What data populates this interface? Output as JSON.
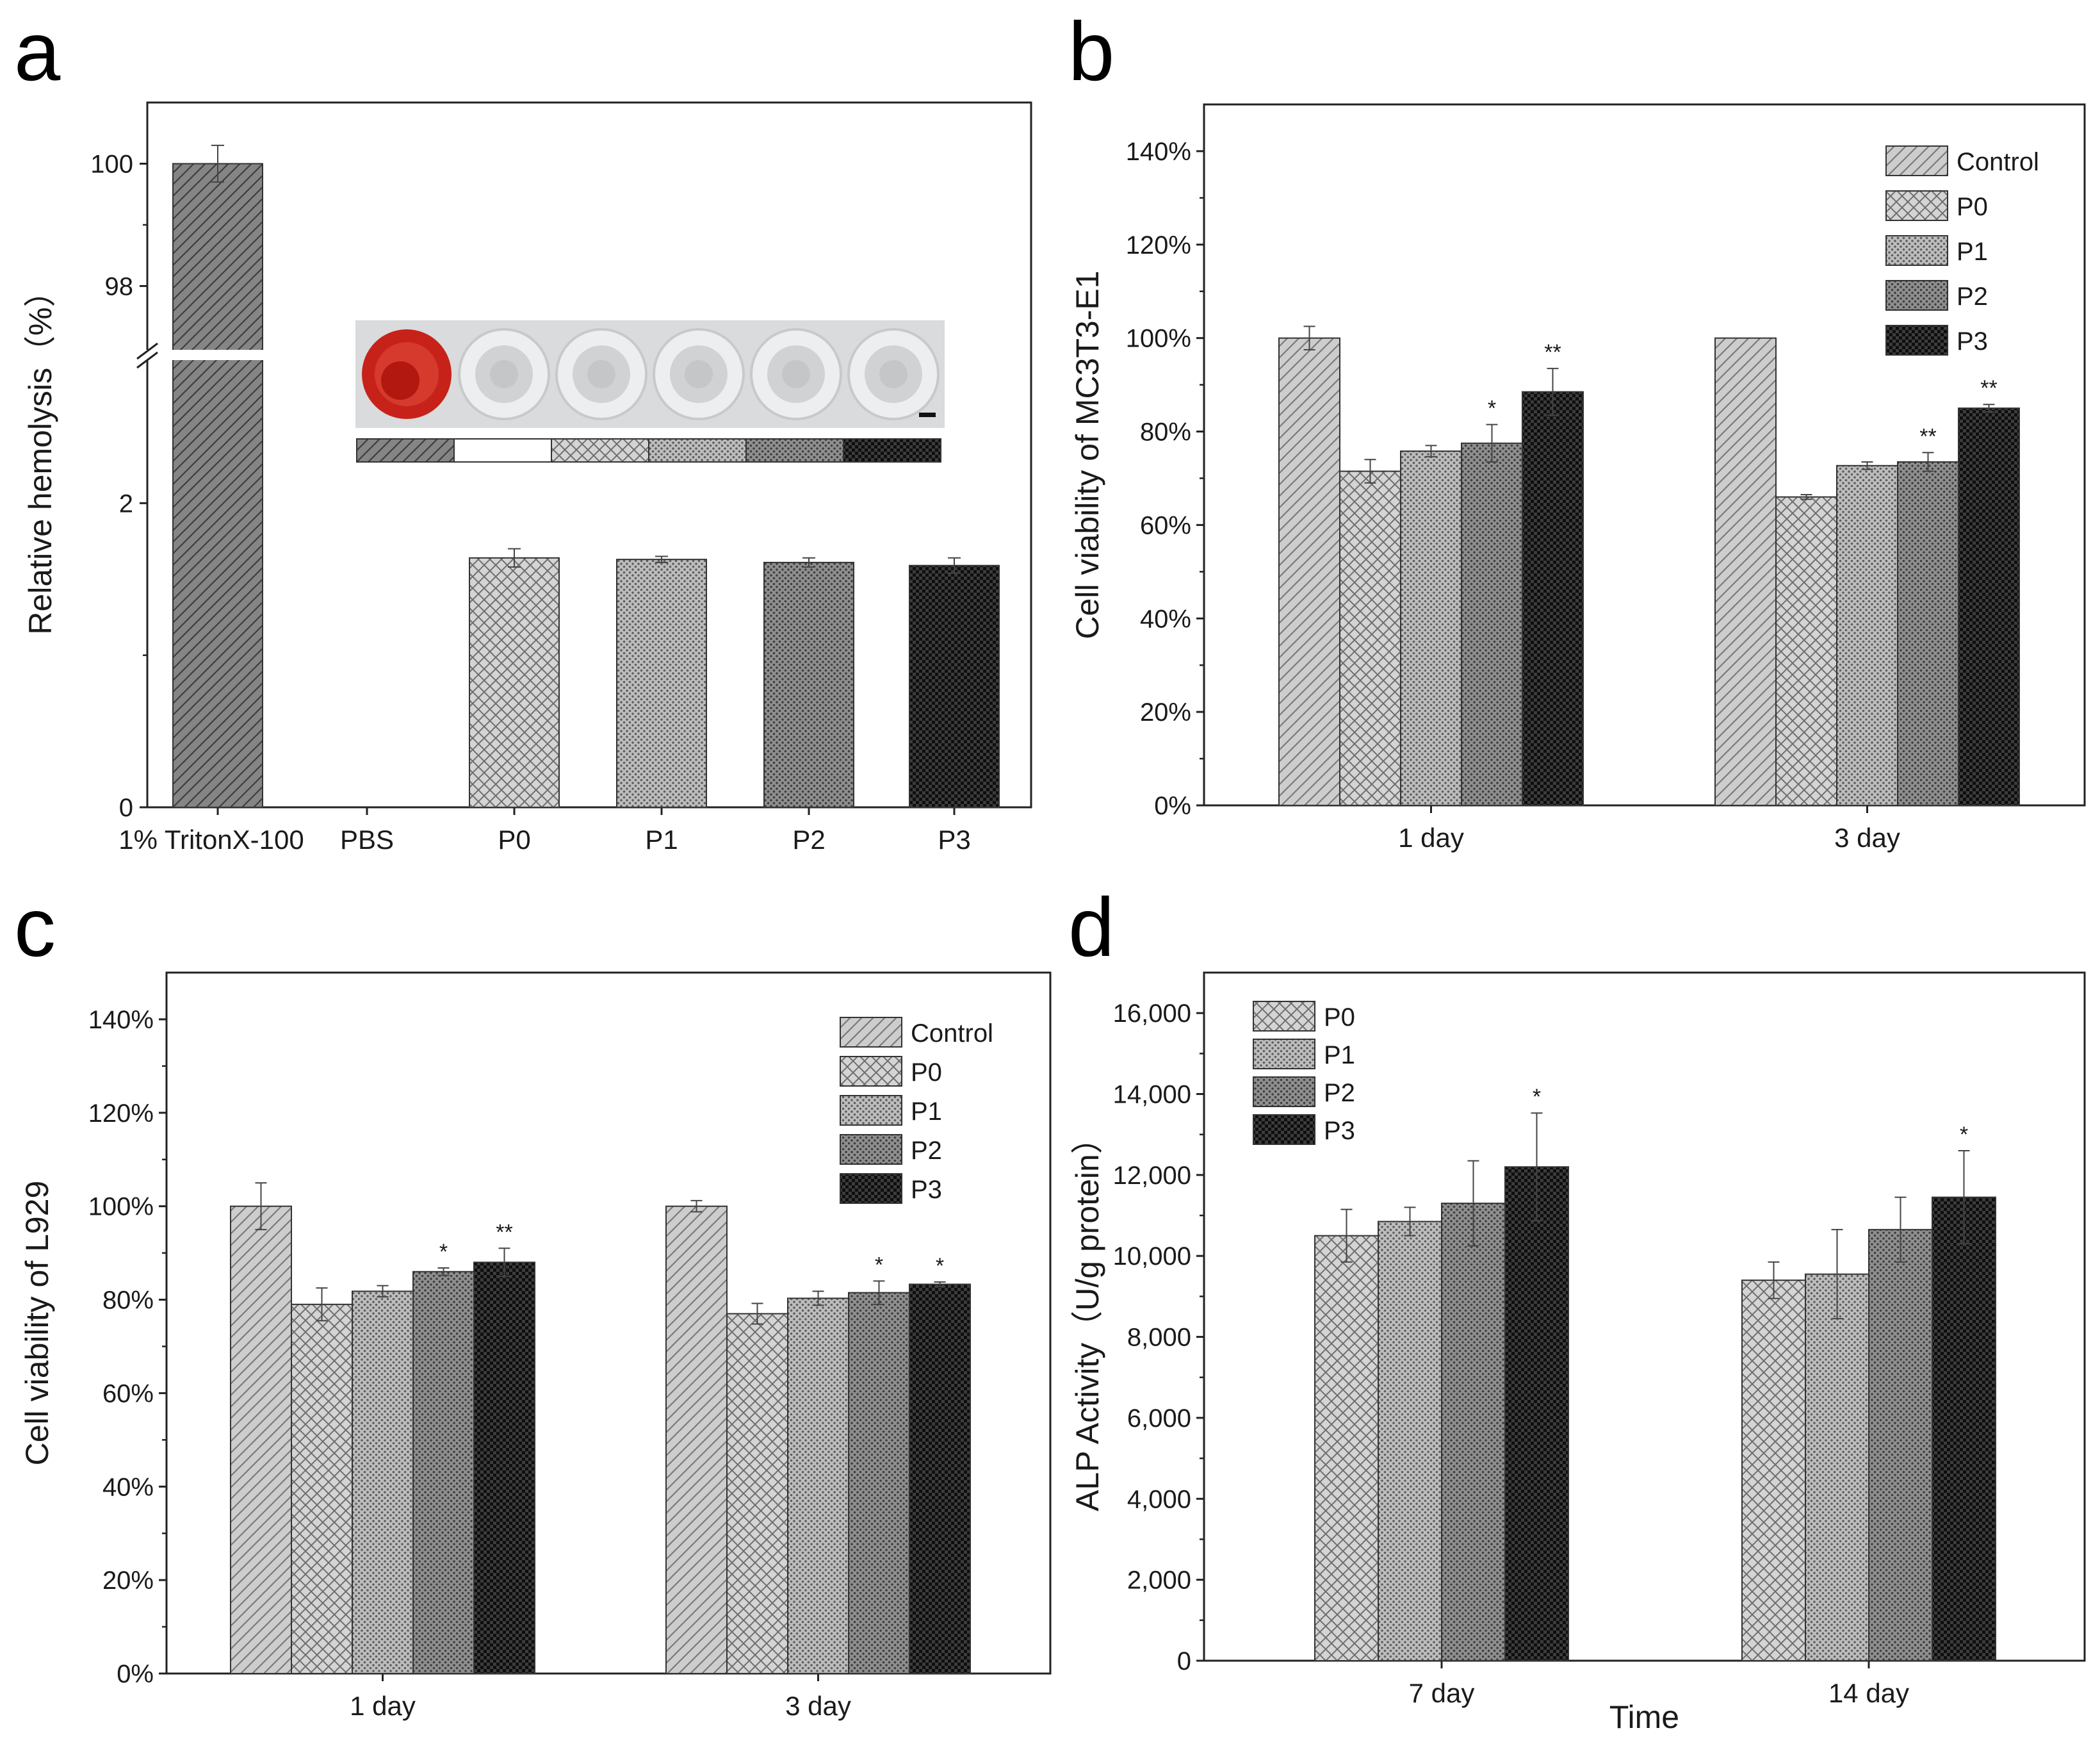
{
  "patterns": {
    "Control": {
      "base": "#cdcdcd",
      "type": "diag",
      "ink": "#7a7a7a"
    },
    "TritonX": {
      "base": "#858585",
      "type": "diag",
      "ink": "#3d3d3d"
    },
    "PBS": {
      "base": "#ffffff",
      "type": "none",
      "ink": "#ffffff"
    },
    "P0": {
      "base": "#d4d4d4",
      "type": "cross",
      "ink": "#6e6e6e"
    },
    "P1": {
      "base": "#bdbdbd",
      "type": "dots",
      "ink": "#5e5e5e"
    },
    "P2": {
      "base": "#8f8f8f",
      "type": "dots",
      "ink": "#3e3e3e"
    },
    "P3": {
      "base": "#3c3c3c",
      "type": "checker",
      "ink": "#0e0e0e"
    }
  },
  "chart_data": [
    {
      "panel": "a",
      "type": "bar",
      "ylabel": "Relative hemolysis（%）",
      "categories": [
        "1% TritonX-100",
        "PBS",
        "P0",
        "P1",
        "P2",
        "P3"
      ],
      "pattern_keys": [
        "TritonX",
        "PBS",
        "P0",
        "P1",
        "P2",
        "P3"
      ],
      "values": [
        100,
        0,
        1.64,
        1.63,
        1.61,
        1.59
      ],
      "errors": [
        0.3,
        0,
        0.06,
        0.02,
        0.03,
        0.05
      ],
      "axis_break": {
        "lower": [
          0,
          3.0
        ],
        "upper": [
          96.8,
          101
        ]
      },
      "yticks": [
        0,
        2,
        98,
        100
      ],
      "ytick_labels": [
        "0",
        "2",
        "98",
        "100"
      ],
      "inset": {
        "type": "photo-of-wells",
        "wells": 6,
        "legend_keys": [
          "TritonX",
          "PBS",
          "P0",
          "P1",
          "P2",
          "P3"
        ]
      }
    },
    {
      "panel": "b",
      "type": "bar",
      "ylabel": "Cell viability of MC3T3-E1",
      "categories": [
        "1 day",
        "3 day"
      ],
      "series": [
        {
          "name": "Control",
          "values": [
            100,
            100
          ],
          "errors": [
            2.5,
            0
          ],
          "sig": [
            "",
            ""
          ]
        },
        {
          "name": "P0",
          "values": [
            71.5,
            66
          ],
          "errors": [
            2.5,
            0.5
          ],
          "sig": [
            "",
            ""
          ]
        },
        {
          "name": "P1",
          "values": [
            75.8,
            72.7
          ],
          "errors": [
            1.2,
            0.8
          ],
          "sig": [
            "",
            ""
          ]
        },
        {
          "name": "P2",
          "values": [
            77.5,
            73.5
          ],
          "errors": [
            4,
            2
          ],
          "sig": [
            "*",
            "**"
          ]
        },
        {
          "name": "P3",
          "values": [
            88.5,
            85
          ],
          "errors": [
            5,
            0.8
          ],
          "sig": [
            "**",
            "**"
          ]
        }
      ],
      "ylim": [
        0,
        150
      ],
      "yticks": [
        0,
        20,
        40,
        60,
        80,
        100,
        120,
        140
      ],
      "ytick_labels": [
        "0%",
        "20%",
        "40%",
        "60%",
        "80%",
        "100%",
        "120%",
        "140%"
      ],
      "legend": "top-right"
    },
    {
      "panel": "c",
      "type": "bar",
      "ylabel": "Cell viability of L929",
      "categories": [
        "1 day",
        "3 day"
      ],
      "series": [
        {
          "name": "Control",
          "values": [
            100,
            100
          ],
          "errors": [
            5,
            1.2
          ],
          "sig": [
            "",
            ""
          ]
        },
        {
          "name": "P0",
          "values": [
            79,
            77
          ],
          "errors": [
            3.5,
            2.2
          ],
          "sig": [
            "",
            ""
          ]
        },
        {
          "name": "P1",
          "values": [
            81.8,
            80.3
          ],
          "errors": [
            1.2,
            1.5
          ],
          "sig": [
            "",
            ""
          ]
        },
        {
          "name": "P2",
          "values": [
            86,
            81.5
          ],
          "errors": [
            0.8,
            2.5
          ],
          "sig": [
            "*",
            "*"
          ]
        },
        {
          "name": "P3",
          "values": [
            88,
            83.3
          ],
          "errors": [
            3,
            0.5
          ],
          "sig": [
            "**",
            "*"
          ]
        }
      ],
      "ylim": [
        0,
        150
      ],
      "yticks": [
        0,
        20,
        40,
        60,
        80,
        100,
        120,
        140
      ],
      "ytick_labels": [
        "0%",
        "20%",
        "40%",
        "60%",
        "80%",
        "100%",
        "120%",
        "140%"
      ],
      "legend": "top-right"
    },
    {
      "panel": "d",
      "type": "bar",
      "ylabel": "ALP Activity（U/g protein）",
      "xlabel": "Time",
      "categories": [
        "7 day",
        "14 day"
      ],
      "series": [
        {
          "name": "P0",
          "values": [
            10500,
            9400
          ],
          "errors": [
            650,
            450
          ],
          "sig": [
            "",
            ""
          ]
        },
        {
          "name": "P1",
          "values": [
            10850,
            9550
          ],
          "errors": [
            350,
            1100
          ],
          "sig": [
            "",
            ""
          ]
        },
        {
          "name": "P2",
          "values": [
            11300,
            10650
          ],
          "errors": [
            1050,
            800
          ],
          "sig": [
            "",
            ""
          ]
        },
        {
          "name": "P3",
          "values": [
            12200,
            11450
          ],
          "errors": [
            1330,
            1150
          ],
          "sig": [
            "*",
            "*"
          ]
        }
      ],
      "ylim": [
        0,
        17000
      ],
      "yticks": [
        0,
        2000,
        4000,
        6000,
        8000,
        10000,
        12000,
        14000,
        16000
      ],
      "ytick_labels": [
        "0",
        "2,000",
        "4,000",
        "6,000",
        "8,000",
        "10,000",
        "12,000",
        "14,000",
        "16,000"
      ],
      "legend": "top-left"
    }
  ]
}
